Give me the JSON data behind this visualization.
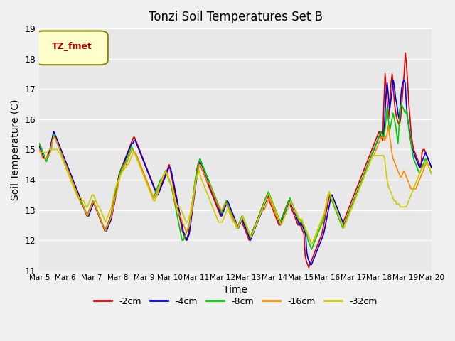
{
  "title": "Tonzi Soil Temperatures Set B",
  "xlabel": "Time",
  "ylabel": "Soil Temperature (C)",
  "ylim": [
    11.0,
    19.0
  ],
  "yticks": [
    11.0,
    12.0,
    13.0,
    14.0,
    15.0,
    16.0,
    17.0,
    18.0,
    19.0
  ],
  "xtick_labels": [
    "Mar 5",
    "Mar 6",
    "Mar 7",
    "Mar 8",
    "Mar 9",
    "Mar 10",
    "Mar 11",
    "Mar 12",
    "Mar 13",
    "Mar 14",
    "Mar 15",
    "Mar 16",
    "Mar 17",
    "Mar 18",
    "Mar 19",
    "Mar 20"
  ],
  "series_colors": [
    "#dd0000",
    "#0000dd",
    "#00cc00",
    "#ff8800",
    "#cccc00"
  ],
  "series_labels": [
    "-2cm",
    "-4cm",
    "-8cm",
    "-16cm",
    "-32cm"
  ],
  "legend_label": "TZ_fmet",
  "legend_bg": "#ffffcc",
  "legend_edge": "#888800",
  "depths_2cm": [
    15.2,
    15.1,
    15.0,
    14.9,
    14.8,
    14.7,
    14.7,
    14.8,
    14.9,
    15.0,
    15.2,
    15.4,
    15.6,
    15.5,
    15.4,
    15.3,
    15.2,
    15.1,
    15.0,
    14.9,
    14.8,
    14.7,
    14.6,
    14.5,
    14.4,
    14.3,
    14.2,
    14.1,
    14.0,
    13.9,
    13.8,
    13.7,
    13.6,
    13.5,
    13.4,
    13.3,
    13.2,
    13.1,
    13.0,
    12.9,
    12.8,
    12.9,
    13.0,
    13.1,
    13.2,
    13.3,
    13.2,
    13.1,
    13.0,
    12.9,
    12.8,
    12.7,
    12.6,
    12.5,
    12.4,
    12.3,
    12.4,
    12.5,
    12.6,
    12.7,
    12.8,
    13.0,
    13.2,
    13.4,
    13.6,
    13.8,
    14.0,
    14.2,
    14.3,
    14.4,
    14.5,
    14.6,
    14.7,
    14.8,
    14.9,
    15.0,
    15.1,
    15.2,
    15.3,
    15.4,
    15.4,
    15.3,
    15.2,
    15.1,
    15.0,
    14.9,
    14.8,
    14.7,
    14.6,
    14.5,
    14.4,
    14.3,
    14.2,
    14.1,
    14.0,
    13.9,
    13.8,
    13.7,
    13.6,
    13.5,
    13.6,
    13.7,
    13.8,
    13.9,
    14.0,
    14.1,
    14.2,
    14.3,
    14.4,
    14.5,
    14.3,
    14.1,
    13.9,
    13.7,
    13.5,
    13.3,
    13.1,
    12.9,
    12.7,
    12.5,
    12.3,
    12.2,
    12.1,
    12.0,
    12.1,
    12.2,
    12.5,
    12.8,
    13.1,
    13.4,
    13.7,
    14.0,
    14.3,
    14.5,
    14.6,
    14.5,
    14.4,
    14.3,
    14.2,
    14.1,
    14.0,
    13.9,
    13.8,
    13.7,
    13.6,
    13.5,
    13.4,
    13.3,
    13.2,
    13.1,
    13.0,
    12.9,
    12.8,
    12.9,
    13.0,
    13.1,
    13.2,
    13.3,
    13.2,
    13.1,
    13.0,
    12.9,
    12.8,
    12.7,
    12.6,
    12.5,
    12.4,
    12.5,
    12.6,
    12.7,
    12.6,
    12.5,
    12.4,
    12.3,
    12.2,
    12.1,
    12.0,
    12.1,
    12.2,
    12.3,
    12.4,
    12.5,
    12.6,
    12.7,
    12.8,
    12.9,
    13.0,
    13.1,
    13.2,
    13.3,
    13.4,
    13.5,
    13.4,
    13.3,
    13.2,
    13.1,
    13.0,
    12.9,
    12.8,
    12.7,
    12.6,
    12.5,
    12.6,
    12.7,
    12.8,
    12.9,
    13.0,
    13.1,
    13.2,
    13.3,
    13.2,
    13.1,
    13.0,
    12.9,
    12.8,
    12.7,
    12.6,
    12.5,
    12.6,
    12.5,
    12.4,
    12.3,
    12.2,
    11.5,
    11.3,
    11.2,
    11.1,
    11.2,
    11.3,
    11.4,
    11.5,
    11.6,
    11.7,
    11.8,
    11.9,
    12.0,
    12.1,
    12.2,
    12.4,
    12.6,
    12.8,
    13.0,
    13.2,
    13.4,
    13.5,
    13.4,
    13.3,
    13.2,
    13.1,
    13.0,
    12.9,
    12.8,
    12.7,
    12.6,
    12.5,
    12.6,
    12.7,
    12.8,
    12.9,
    13.0,
    13.1,
    13.2,
    13.3,
    13.4,
    13.5,
    13.6,
    13.7,
    13.8,
    13.9,
    14.0,
    14.1,
    14.2,
    14.3,
    14.4,
    14.5,
    14.6,
    14.7,
    14.8,
    14.9,
    15.0,
    15.1,
    15.2,
    15.3,
    15.4,
    15.5,
    15.6,
    15.5,
    15.4,
    15.3,
    16.5,
    17.5,
    17.0,
    16.5,
    16.0,
    16.5,
    17.2,
    17.5,
    17.0,
    16.5,
    16.2,
    16.0,
    15.9,
    15.8,
    16.0,
    16.5,
    17.0,
    17.5,
    18.2,
    17.8,
    17.2,
    16.5,
    16.0,
    15.5,
    15.2,
    15.0,
    14.9,
    14.8,
    14.7,
    14.6,
    14.5,
    14.4,
    14.9,
    15.0,
    15.0,
    14.9,
    14.8,
    14.7,
    14.6,
    14.5,
    14.4
  ],
  "depths_4cm": [
    15.1,
    15.0,
    14.9,
    14.8,
    14.7,
    14.7,
    14.7,
    14.8,
    14.9,
    15.0,
    15.2,
    15.4,
    15.6,
    15.5,
    15.4,
    15.3,
    15.2,
    15.1,
    15.0,
    14.9,
    14.8,
    14.7,
    14.6,
    14.5,
    14.4,
    14.3,
    14.2,
    14.1,
    14.0,
    13.9,
    13.8,
    13.7,
    13.6,
    13.5,
    13.4,
    13.3,
    13.2,
    13.1,
    13.0,
    12.9,
    12.8,
    12.8,
    12.9,
    13.0,
    13.1,
    13.2,
    13.2,
    13.1,
    13.0,
    12.9,
    12.8,
    12.7,
    12.6,
    12.5,
    12.4,
    12.3,
    12.3,
    12.4,
    12.5,
    12.6,
    12.7,
    12.9,
    13.1,
    13.3,
    13.5,
    13.8,
    14.0,
    14.2,
    14.3,
    14.4,
    14.5,
    14.6,
    14.7,
    14.8,
    14.9,
    15.0,
    15.1,
    15.2,
    15.2,
    15.3,
    15.3,
    15.2,
    15.1,
    15.0,
    14.9,
    14.8,
    14.7,
    14.6,
    14.5,
    14.4,
    14.3,
    14.2,
    14.1,
    14.0,
    13.9,
    13.8,
    13.7,
    13.6,
    13.5,
    13.5,
    13.6,
    13.7,
    13.8,
    13.9,
    14.0,
    14.1,
    14.2,
    14.3,
    14.4,
    14.4,
    14.3,
    14.1,
    13.9,
    13.7,
    13.5,
    13.3,
    13.1,
    12.9,
    12.7,
    12.5,
    12.3,
    12.2,
    12.1,
    12.0,
    12.1,
    12.2,
    12.5,
    12.8,
    13.1,
    13.4,
    13.7,
    14.0,
    14.3,
    14.5,
    14.6,
    14.5,
    14.4,
    14.3,
    14.2,
    14.1,
    14.0,
    13.9,
    13.8,
    13.7,
    13.6,
    13.5,
    13.4,
    13.3,
    13.2,
    13.1,
    13.0,
    12.9,
    12.8,
    12.9,
    13.0,
    13.1,
    13.2,
    13.3,
    13.2,
    13.1,
    13.0,
    12.9,
    12.8,
    12.7,
    12.6,
    12.5,
    12.4,
    12.5,
    12.6,
    12.7,
    12.6,
    12.5,
    12.4,
    12.3,
    12.2,
    12.1,
    12.0,
    12.1,
    12.2,
    12.3,
    12.4,
    12.5,
    12.6,
    12.7,
    12.8,
    12.9,
    13.0,
    13.1,
    13.2,
    13.3,
    13.4,
    13.5,
    13.4,
    13.3,
    13.2,
    13.1,
    13.0,
    12.9,
    12.8,
    12.7,
    12.6,
    12.5,
    12.6,
    12.7,
    12.8,
    12.9,
    13.0,
    13.1,
    13.2,
    13.3,
    13.2,
    13.1,
    13.0,
    12.9,
    12.8,
    12.7,
    12.6,
    12.5,
    12.6,
    12.5,
    12.4,
    12.3,
    12.2,
    11.6,
    11.4,
    11.3,
    11.2,
    11.2,
    11.3,
    11.4,
    11.5,
    11.6,
    11.7,
    11.8,
    11.9,
    12.0,
    12.1,
    12.2,
    12.4,
    12.6,
    12.8,
    13.0,
    13.2,
    13.4,
    13.5,
    13.4,
    13.3,
    13.2,
    13.1,
    13.0,
    12.9,
    12.8,
    12.7,
    12.6,
    12.5,
    12.6,
    12.7,
    12.8,
    12.9,
    13.0,
    13.1,
    13.2,
    13.3,
    13.4,
    13.5,
    13.6,
    13.7,
    13.8,
    13.9,
    14.0,
    14.1,
    14.2,
    14.3,
    14.4,
    14.5,
    14.6,
    14.7,
    14.8,
    14.9,
    15.0,
    15.1,
    15.2,
    15.3,
    15.4,
    15.5,
    15.6,
    15.5,
    15.4,
    16.0,
    16.8,
    17.2,
    16.8,
    16.3,
    16.6,
    16.9,
    17.3,
    17.1,
    16.7,
    16.5,
    16.2,
    16.0,
    16.5,
    17.0,
    17.2,
    17.3,
    17.2,
    16.5,
    16.0,
    15.8,
    15.5,
    15.2,
    15.0,
    14.9,
    14.8,
    14.7,
    14.6,
    14.5,
    14.4,
    14.5,
    14.6,
    14.7,
    14.8,
    14.9,
    14.8,
    14.7,
    14.6,
    14.5,
    14.4
  ],
  "depths_8cm": [
    15.2,
    15.1,
    15.0,
    14.9,
    14.8,
    14.7,
    14.6,
    14.7,
    14.8,
    14.9,
    15.0,
    15.3,
    15.5,
    15.4,
    15.3,
    15.2,
    15.1,
    15.0,
    14.9,
    14.8,
    14.7,
    14.6,
    14.5,
    14.4,
    14.3,
    14.2,
    14.1,
    14.0,
    13.9,
    13.8,
    13.7,
    13.6,
    13.5,
    13.4,
    13.3,
    13.2,
    13.2,
    13.1,
    13.0,
    12.9,
    12.8,
    12.9,
    13.0,
    13.1,
    13.2,
    13.3,
    13.2,
    13.1,
    13.0,
    12.9,
    12.8,
    12.7,
    12.6,
    12.5,
    12.4,
    12.3,
    12.4,
    12.5,
    12.6,
    12.7,
    12.8,
    13.0,
    13.2,
    13.4,
    13.6,
    13.8,
    14.0,
    14.2,
    14.3,
    14.4,
    14.5,
    14.5,
    14.6,
    14.7,
    14.8,
    14.9,
    15.0,
    15.1,
    15.0,
    14.9,
    14.9,
    14.8,
    14.7,
    14.6,
    14.5,
    14.4,
    14.3,
    14.2,
    14.1,
    14.0,
    13.9,
    13.8,
    13.7,
    13.6,
    13.5,
    13.4,
    13.5,
    13.6,
    13.7,
    13.8,
    13.9,
    14.0,
    14.0,
    14.1,
    14.2,
    14.3,
    14.2,
    14.1,
    14.0,
    13.9,
    13.8,
    13.6,
    13.4,
    13.2,
    13.0,
    12.8,
    12.6,
    12.4,
    12.2,
    12.0,
    12.0,
    12.1,
    12.2,
    12.3,
    12.4,
    12.5,
    12.8,
    13.1,
    13.4,
    13.7,
    14.0,
    14.2,
    14.4,
    14.6,
    14.7,
    14.6,
    14.5,
    14.4,
    14.3,
    14.2,
    14.1,
    14.0,
    13.9,
    13.8,
    13.7,
    13.6,
    13.5,
    13.4,
    13.3,
    13.2,
    13.1,
    13.0,
    12.9,
    13.0,
    13.1,
    13.2,
    13.3,
    13.2,
    13.1,
    13.0,
    12.9,
    12.8,
    12.7,
    12.6,
    12.5,
    12.4,
    12.5,
    12.6,
    12.7,
    12.8,
    12.7,
    12.6,
    12.5,
    12.4,
    12.3,
    12.2,
    12.1,
    12.2,
    12.3,
    12.4,
    12.5,
    12.6,
    12.7,
    12.8,
    12.9,
    13.0,
    13.1,
    13.2,
    13.3,
    13.4,
    13.5,
    13.6,
    13.5,
    13.4,
    13.3,
    13.2,
    13.1,
    13.0,
    12.9,
    12.8,
    12.7,
    12.6,
    12.7,
    12.8,
    12.9,
    13.0,
    13.1,
    13.2,
    13.3,
    13.4,
    13.3,
    13.2,
    13.1,
    13.0,
    12.9,
    12.8,
    12.7,
    12.6,
    12.7,
    12.6,
    12.5,
    12.4,
    12.3,
    12.2,
    12.0,
    11.9,
    11.8,
    11.7,
    11.8,
    11.9,
    12.0,
    12.1,
    12.2,
    12.3,
    12.4,
    12.5,
    12.6,
    12.7,
    12.9,
    13.1,
    13.3,
    13.5,
    13.5,
    13.4,
    13.3,
    13.2,
    13.1,
    13.0,
    12.9,
    12.8,
    12.7,
    12.6,
    12.5,
    12.4,
    12.5,
    12.6,
    12.7,
    12.8,
    12.9,
    13.0,
    13.1,
    13.2,
    13.3,
    13.4,
    13.5,
    13.6,
    13.7,
    13.8,
    13.9,
    14.0,
    14.1,
    14.2,
    14.3,
    14.4,
    14.5,
    14.6,
    14.7,
    14.8,
    14.9,
    15.0,
    15.1,
    15.2,
    15.3,
    15.4,
    15.5,
    15.6,
    15.5,
    15.4,
    15.6,
    16.0,
    16.4,
    16.0,
    15.6,
    15.8,
    16.0,
    16.2,
    16.0,
    15.8,
    15.5,
    15.2,
    15.8,
    16.4,
    16.5,
    16.4,
    16.3,
    16.2,
    16.3,
    16.0,
    15.7,
    15.4,
    15.2,
    14.9,
    14.7,
    14.6,
    14.5,
    14.4,
    14.3,
    14.2,
    14.3,
    14.4,
    14.5,
    14.6,
    14.7,
    14.6,
    14.5,
    14.4,
    14.3,
    14.2
  ],
  "depths_16cm": [
    15.0,
    14.9,
    14.8,
    14.7,
    14.7,
    14.7,
    14.7,
    14.8,
    14.8,
    14.9,
    15.1,
    15.3,
    15.4,
    15.4,
    15.3,
    15.2,
    15.1,
    15.0,
    14.9,
    14.8,
    14.7,
    14.6,
    14.5,
    14.4,
    14.3,
    14.2,
    14.1,
    14.0,
    13.9,
    13.8,
    13.7,
    13.6,
    13.5,
    13.4,
    13.3,
    13.3,
    13.2,
    13.1,
    13.0,
    12.9,
    12.8,
    12.9,
    13.0,
    13.1,
    13.2,
    13.3,
    13.2,
    13.1,
    13.0,
    12.9,
    12.8,
    12.7,
    12.6,
    12.5,
    12.4,
    12.3,
    12.4,
    12.5,
    12.6,
    12.7,
    12.8,
    13.0,
    13.2,
    13.4,
    13.5,
    13.7,
    13.9,
    14.1,
    14.2,
    14.3,
    14.4,
    14.5,
    14.5,
    14.6,
    14.7,
    14.8,
    14.9,
    15.0,
    15.0,
    14.9,
    14.9,
    14.8,
    14.7,
    14.6,
    14.5,
    14.4,
    14.3,
    14.2,
    14.1,
    14.0,
    13.9,
    13.8,
    13.7,
    13.6,
    13.5,
    13.4,
    13.4,
    13.5,
    13.6,
    13.7,
    13.8,
    13.9,
    14.0,
    14.1,
    14.2,
    14.3,
    14.2,
    14.1,
    14.0,
    13.9,
    13.8,
    13.6,
    13.4,
    13.2,
    13.1,
    13.0,
    12.9,
    12.8,
    12.7,
    12.6,
    12.5,
    12.4,
    12.3,
    12.3,
    12.4,
    12.5,
    12.8,
    13.0,
    13.3,
    13.6,
    13.9,
    14.1,
    14.3,
    14.5,
    14.5,
    14.4,
    14.3,
    14.2,
    14.1,
    14.0,
    13.9,
    13.9,
    13.8,
    13.7,
    13.6,
    13.5,
    13.4,
    13.3,
    13.2,
    13.1,
    13.1,
    13.0,
    13.0,
    13.1,
    13.2,
    13.2,
    13.2,
    13.1,
    13.0,
    12.9,
    12.8,
    12.7,
    12.7,
    12.6,
    12.5,
    12.4,
    12.5,
    12.6,
    12.7,
    12.8,
    12.7,
    12.6,
    12.5,
    12.4,
    12.3,
    12.2,
    12.1,
    12.2,
    12.3,
    12.4,
    12.5,
    12.6,
    12.7,
    12.8,
    12.9,
    13.0,
    13.0,
    13.0,
    13.1,
    13.2,
    13.3,
    13.4,
    13.3,
    13.2,
    13.1,
    13.0,
    12.9,
    12.8,
    12.7,
    12.7,
    12.6,
    12.5,
    12.6,
    12.7,
    12.8,
    12.9,
    13.0,
    13.1,
    13.2,
    13.3,
    13.2,
    13.1,
    13.0,
    13.0,
    12.9,
    12.8,
    12.7,
    12.6,
    12.7,
    12.6,
    12.5,
    12.4,
    12.3,
    12.2,
    12.1,
    12.0,
    11.9,
    11.9,
    12.0,
    12.1,
    12.2,
    12.3,
    12.4,
    12.5,
    12.6,
    12.7,
    12.8,
    12.9,
    13.1,
    13.3,
    13.5,
    13.6,
    13.5,
    13.4,
    13.3,
    13.2,
    13.1,
    13.0,
    12.9,
    12.8,
    12.7,
    12.6,
    12.5,
    12.4,
    12.5,
    12.6,
    12.7,
    12.8,
    12.9,
    13.0,
    13.1,
    13.2,
    13.3,
    13.4,
    13.5,
    13.6,
    13.7,
    13.8,
    13.9,
    14.0,
    14.1,
    14.2,
    14.3,
    14.4,
    14.5,
    14.6,
    14.7,
    14.8,
    14.8,
    14.9,
    15.0,
    15.1,
    15.2,
    15.3,
    15.4,
    15.4,
    15.4,
    15.3,
    15.4,
    15.5,
    15.8,
    15.5,
    15.2,
    14.9,
    14.7,
    14.6,
    14.5,
    14.4,
    14.3,
    14.2,
    14.1,
    14.1,
    14.2,
    14.3,
    14.2,
    14.1,
    14.0,
    13.9,
    13.8,
    13.7,
    13.7,
    13.7,
    13.7,
    13.7,
    13.8,
    13.9,
    14.0,
    14.1,
    14.2,
    14.3,
    14.4,
    14.5,
    14.6,
    14.5,
    14.4,
    14.3,
    14.2
  ],
  "depths_32cm": [
    14.9,
    14.9,
    14.9,
    14.9,
    14.9,
    14.9,
    14.9,
    14.9,
    15.0,
    15.0,
    15.0,
    15.0,
    15.0,
    15.0,
    15.0,
    15.0,
    14.9,
    14.9,
    14.8,
    14.7,
    14.6,
    14.5,
    14.4,
    14.3,
    14.2,
    14.1,
    14.0,
    13.9,
    13.8,
    13.7,
    13.6,
    13.5,
    13.4,
    13.4,
    13.4,
    13.4,
    13.3,
    13.3,
    13.2,
    13.1,
    13.1,
    13.2,
    13.3,
    13.4,
    13.5,
    13.5,
    13.4,
    13.3,
    13.2,
    13.1,
    13.1,
    13.0,
    12.9,
    12.8,
    12.7,
    12.6,
    12.7,
    12.8,
    12.9,
    13.0,
    13.1,
    13.3,
    13.5,
    13.7,
    13.8,
    13.9,
    14.0,
    14.1,
    14.2,
    14.3,
    14.3,
    14.4,
    14.4,
    14.5,
    14.5,
    14.6,
    14.7,
    14.8,
    14.9,
    14.9,
    14.8,
    14.7,
    14.6,
    14.5,
    14.4,
    14.3,
    14.2,
    14.1,
    14.0,
    13.9,
    13.8,
    13.7,
    13.6,
    13.5,
    13.4,
    13.3,
    13.3,
    13.4,
    13.5,
    13.6,
    13.8,
    13.9,
    14.0,
    14.1,
    14.2,
    14.3,
    14.2,
    14.1,
    14.0,
    13.9,
    13.8,
    13.7,
    13.5,
    13.3,
    13.2,
    13.1,
    13.1,
    13.1,
    13.0,
    12.9,
    12.8,
    12.7,
    12.6,
    12.6,
    12.7,
    12.8,
    13.0,
    13.2,
    13.5,
    13.7,
    14.0,
    14.1,
    14.2,
    14.3,
    14.1,
    14.0,
    13.9,
    13.8,
    13.7,
    13.6,
    13.5,
    13.4,
    13.3,
    13.2,
    13.1,
    13.0,
    12.9,
    12.8,
    12.7,
    12.6,
    12.6,
    12.6,
    12.6,
    12.7,
    12.8,
    12.9,
    13.0,
    13.0,
    12.9,
    12.8,
    12.7,
    12.6,
    12.6,
    12.5,
    12.4,
    12.4,
    12.5,
    12.6,
    12.7,
    12.8,
    12.7,
    12.6,
    12.5,
    12.4,
    12.3,
    12.2,
    12.1,
    12.2,
    12.3,
    12.4,
    12.5,
    12.6,
    12.7,
    12.8,
    12.9,
    13.0,
    13.1,
    13.2,
    13.3,
    13.4,
    13.5,
    13.5,
    13.4,
    13.3,
    13.2,
    13.1,
    13.0,
    12.9,
    12.8,
    12.7,
    12.6,
    12.5,
    12.6,
    12.7,
    12.8,
    12.9,
    13.0,
    13.1,
    13.2,
    13.3,
    13.2,
    13.1,
    13.0,
    12.9,
    12.9,
    12.8,
    12.7,
    12.6,
    12.7,
    12.6,
    12.5,
    12.4,
    12.3,
    12.2,
    12.1,
    12.0,
    11.9,
    11.9,
    12.0,
    12.1,
    12.2,
    12.3,
    12.4,
    12.5,
    12.6,
    12.7,
    12.8,
    12.9,
    13.1,
    13.3,
    13.5,
    13.6,
    13.5,
    13.4,
    13.3,
    13.2,
    13.1,
    13.0,
    12.9,
    12.8,
    12.7,
    12.6,
    12.5,
    12.4,
    12.5,
    12.6,
    12.7,
    12.8,
    12.9,
    13.0,
    13.1,
    13.2,
    13.3,
    13.4,
    13.5,
    13.6,
    13.7,
    13.8,
    13.9,
    14.0,
    14.1,
    14.2,
    14.3,
    14.4,
    14.5,
    14.6,
    14.7,
    14.8,
    14.8,
    14.8,
    14.8,
    14.8,
    14.8,
    14.8,
    14.8,
    14.8,
    14.8,
    14.7,
    14.3,
    14.0,
    13.8,
    13.7,
    13.6,
    13.5,
    13.4,
    13.3,
    13.3,
    13.2,
    13.2,
    13.2,
    13.1,
    13.1,
    13.1,
    13.1,
    13.1,
    13.1,
    13.2,
    13.3,
    13.4,
    13.5,
    13.6,
    13.7,
    13.8,
    13.9,
    14.0,
    14.1,
    14.2,
    14.3,
    14.4,
    14.4,
    14.5,
    14.6,
    14.6,
    14.5,
    14.4,
    14.3,
    14.2
  ]
}
